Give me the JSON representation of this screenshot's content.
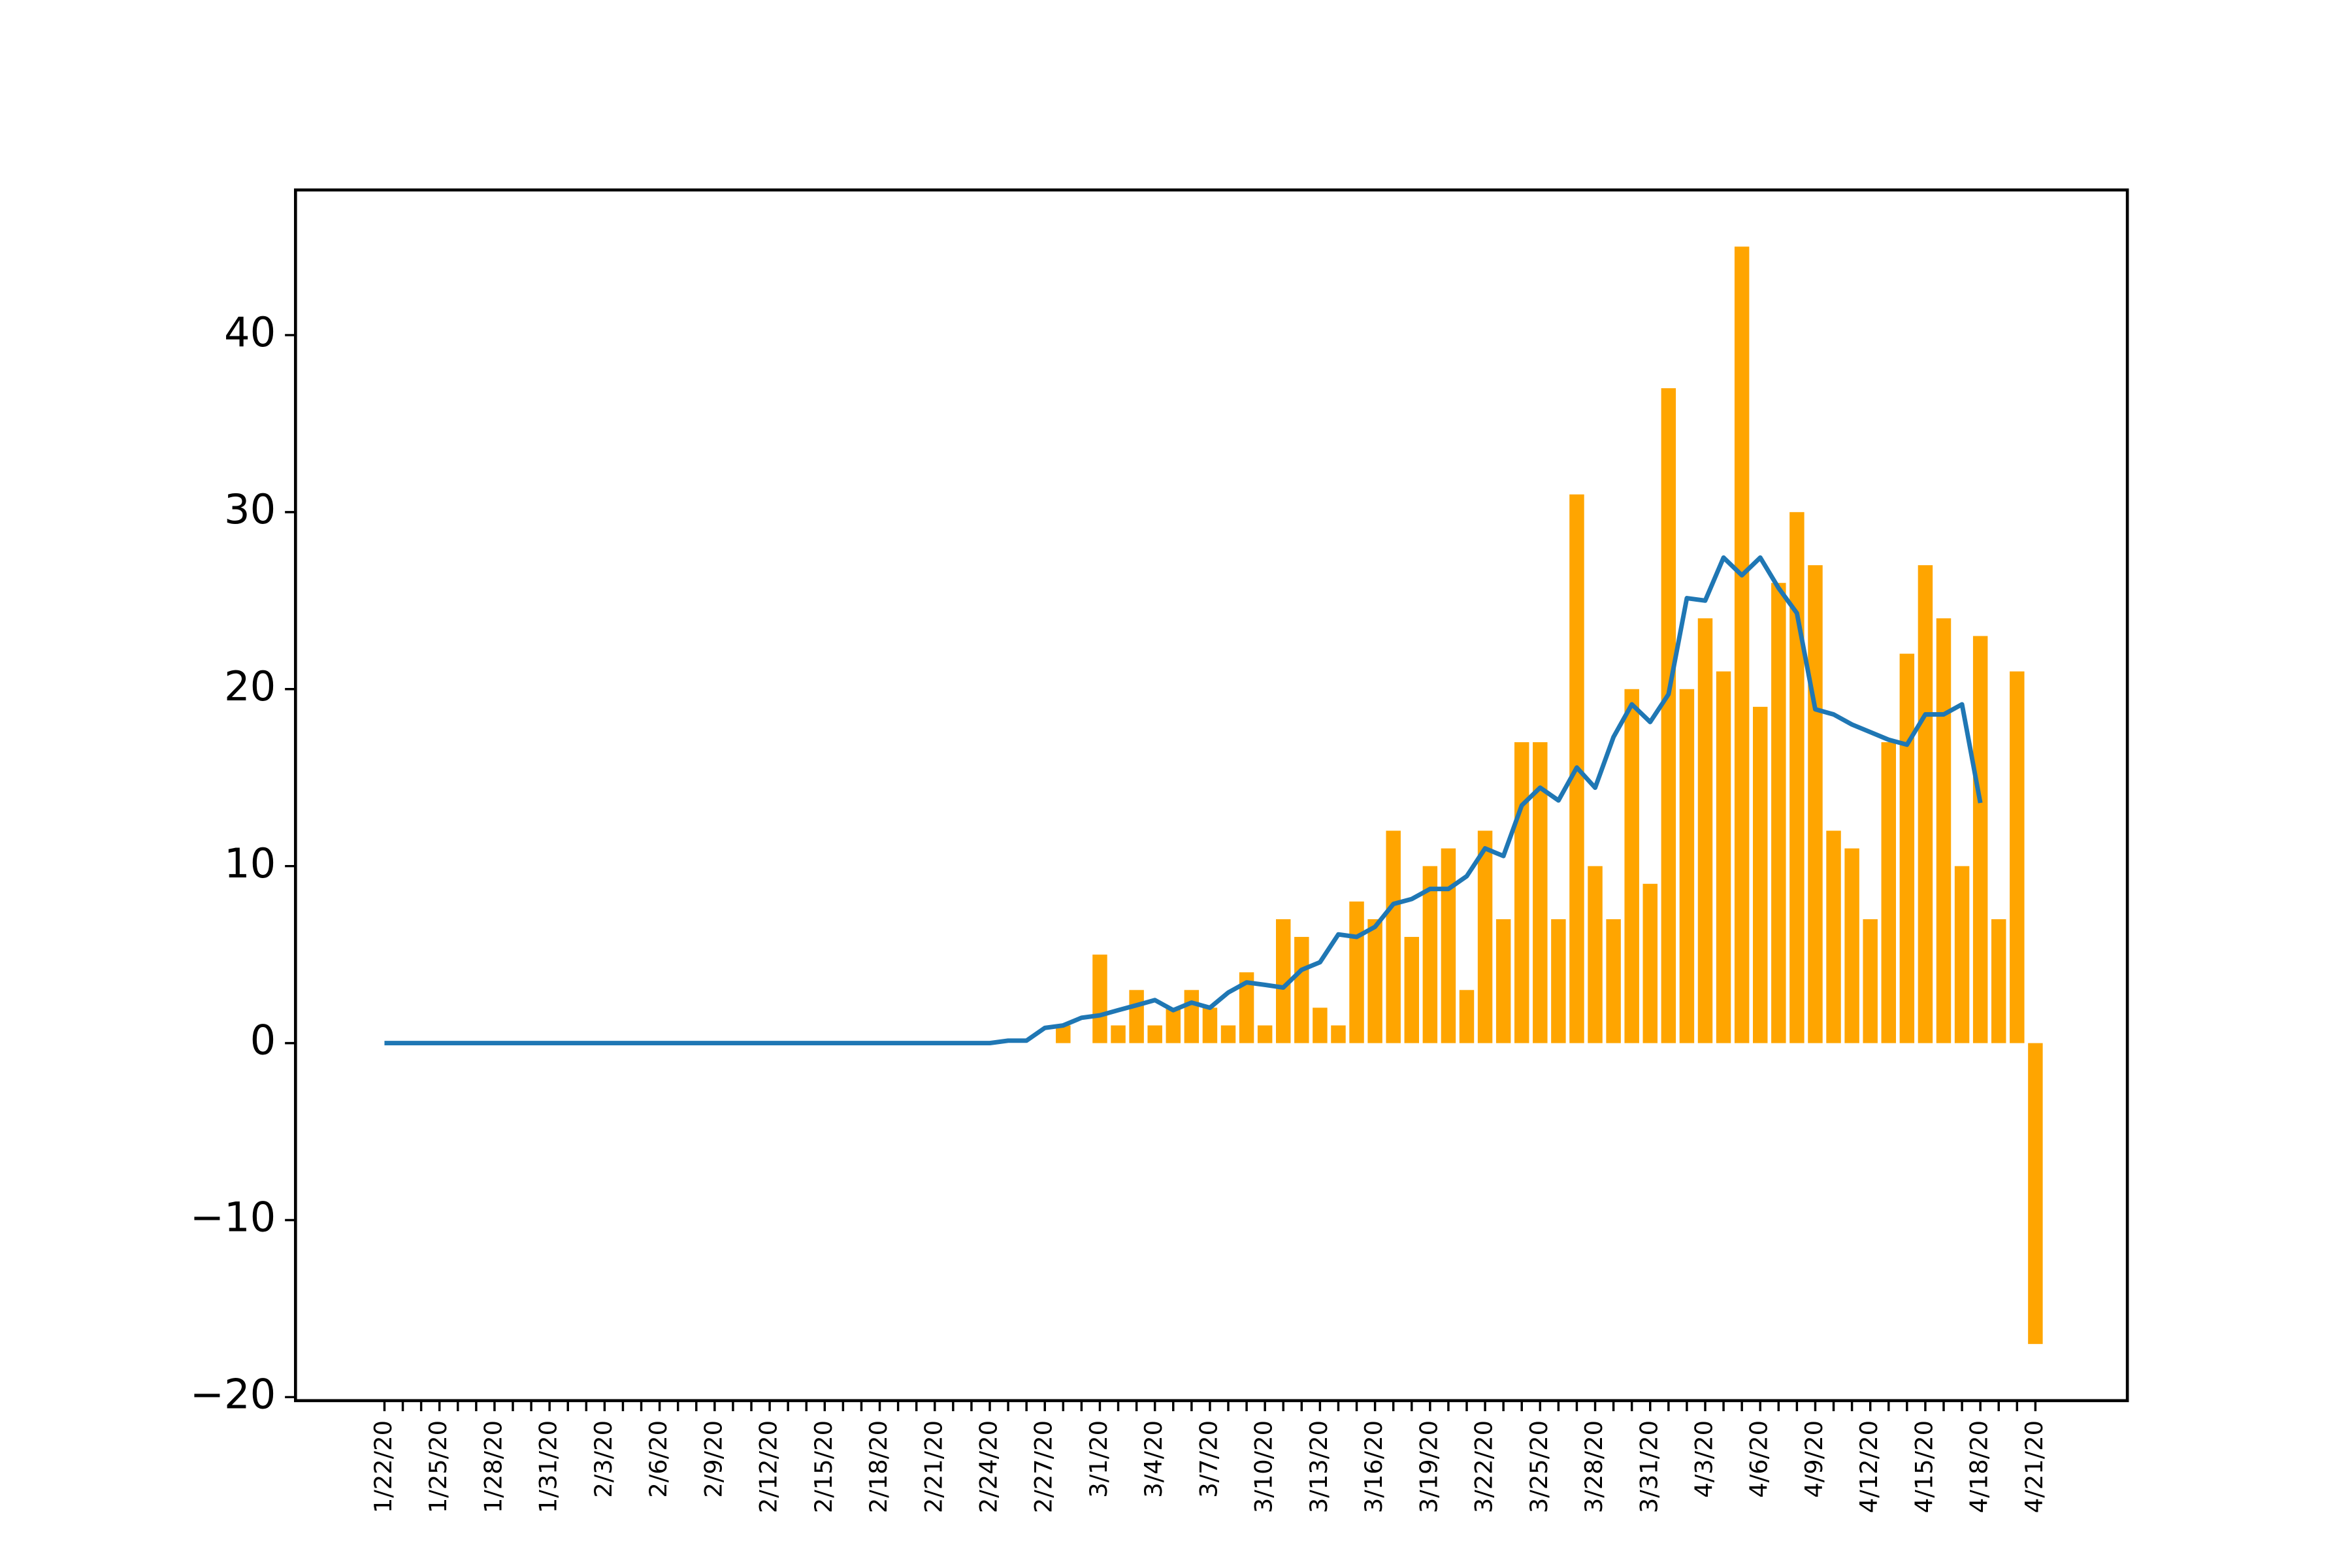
{
  "chart_data": {
    "type": "bar_line",
    "categories": [
      "1/22/20",
      null,
      null,
      "1/25/20",
      null,
      null,
      "1/28/20",
      null,
      null,
      "1/31/20",
      null,
      null,
      "2/3/20",
      null,
      null,
      "2/6/20",
      null,
      null,
      "2/9/20",
      null,
      null,
      "2/12/20",
      null,
      null,
      "2/15/20",
      null,
      null,
      "2/18/20",
      null,
      null,
      "2/21/20",
      null,
      null,
      "2/24/20",
      null,
      null,
      "2/27/20",
      null,
      null,
      "3/1/20",
      null,
      null,
      "3/4/20",
      null,
      null,
      "3/7/20",
      null,
      null,
      "3/10/20",
      null,
      null,
      "3/13/20",
      null,
      null,
      "3/16/20",
      null,
      null,
      "3/19/20",
      null,
      null,
      "3/22/20",
      null,
      null,
      "3/25/20",
      null,
      null,
      "3/28/20",
      null,
      null,
      "3/31/20",
      null,
      null,
      "4/3/20",
      null,
      null,
      "4/6/20",
      null,
      null,
      "4/9/20",
      null,
      null,
      "4/12/20",
      null,
      null,
      "4/15/20",
      null,
      null,
      "4/18/20",
      null,
      null,
      "4/21/20"
    ],
    "bars": {
      "color": "#ffa500",
      "values": [
        0,
        0,
        0,
        0,
        0,
        0,
        0,
        0,
        0,
        0,
        0,
        0,
        0,
        0,
        0,
        0,
        0,
        0,
        0,
        0,
        0,
        0,
        0,
        0,
        0,
        0,
        0,
        0,
        0,
        0,
        0,
        0,
        0,
        0,
        0,
        0,
        0,
        1,
        0,
        5,
        1,
        3,
        1,
        2,
        3,
        2,
        1,
        4,
        1,
        7,
        6,
        2,
        1,
        8,
        7,
        12,
        6,
        10,
        11,
        3,
        12,
        7,
        17,
        17,
        7,
        31,
        10,
        7,
        20,
        9,
        37,
        20,
        24,
        21,
        45,
        19,
        26,
        30,
        27,
        12,
        11,
        7,
        17,
        22,
        27,
        24,
        10,
        23,
        7,
        21,
        -17
      ]
    },
    "line": {
      "color": "#1f77b4",
      "values": [
        0,
        0,
        0,
        0,
        0,
        0,
        0,
        0,
        0,
        0,
        0,
        0,
        0,
        0,
        0,
        0,
        0,
        0,
        0,
        0,
        0,
        0,
        0,
        0,
        0,
        0,
        0,
        0,
        0,
        0,
        0,
        0,
        0,
        0,
        0.14,
        0.14,
        0.86,
        1.0,
        1.43,
        1.57,
        1.86,
        2.14,
        2.43,
        1.86,
        2.29,
        2.0,
        2.86,
        3.43,
        3.29,
        3.14,
        4.14,
        4.57,
        6.14,
        6.0,
        6.57,
        7.86,
        8.14,
        8.71,
        8.71,
        9.43,
        11.0,
        10.57,
        13.43,
        14.43,
        13.71,
        15.57,
        14.43,
        17.29,
        19.14,
        18.14,
        19.71,
        25.14,
        25.0,
        27.43,
        26.43,
        27.43,
        25.71,
        24.29,
        18.86,
        18.57,
        18.0,
        17.57,
        17.14,
        16.86,
        18.57,
        18.57,
        19.14,
        13.57,
        null,
        null,
        null
      ]
    },
    "ylim": [
      -20.2,
      48.2
    ],
    "yticks": [
      {
        "value": -20,
        "label": "−20"
      },
      {
        "value": -10,
        "label": "−10"
      },
      0,
      10,
      20,
      30,
      40
    ]
  }
}
